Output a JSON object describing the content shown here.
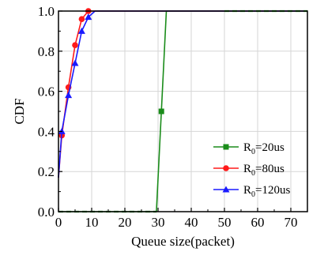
{
  "chart_data": {
    "type": "line",
    "xlabel": "Queue size(packet)",
    "ylabel": "CDF",
    "xlim": [
      0,
      75
    ],
    "ylim": [
      0.0,
      1.0
    ],
    "xticks": [
      0,
      10,
      20,
      30,
      40,
      50,
      60,
      70
    ],
    "yticks": [
      0.0,
      0.2,
      0.4,
      0.6,
      0.8,
      1.0
    ],
    "xtick_labels": [
      "0",
      "10",
      "20",
      "30",
      "40",
      "50",
      "60",
      "70"
    ],
    "ytick_labels": [
      "0.0",
      "0.2",
      "0.4",
      "0.6",
      "0.8",
      "1.0"
    ],
    "grid": true,
    "legend_position": "bottom-right",
    "series": [
      {
        "name_main": "R",
        "name_sub": "0",
        "name_rest": "=20us",
        "color": "#1a8c1a",
        "marker": "square",
        "x": [
          0,
          29.5,
          31,
          32.5,
          50,
          75
        ],
        "y": [
          0.0,
          0.0,
          0.5,
          1.0,
          1.0,
          1.0
        ],
        "markers_x": [
          31
        ],
        "markers_y": [
          0.5
        ]
      },
      {
        "name_main": "R",
        "name_sub": "0",
        "name_rest": "=80us",
        "color": "#ff1a1a",
        "marker": "circle",
        "x": [
          0,
          1,
          3,
          5,
          7,
          9,
          10,
          75
        ],
        "y": [
          0.17,
          0.38,
          0.62,
          0.83,
          0.96,
          1.0,
          1.0,
          1.0
        ],
        "markers_x": [
          1,
          3,
          5,
          7,
          9
        ],
        "markers_y": [
          0.38,
          0.62,
          0.83,
          0.96,
          1.0
        ]
      },
      {
        "name_main": "R",
        "name_sub": "0",
        "name_rest": "=120us",
        "color": "#1a1aff",
        "marker": "triangle",
        "x": [
          0,
          1,
          3,
          5,
          7,
          9,
          11,
          75
        ],
        "y": [
          0.17,
          0.4,
          0.58,
          0.74,
          0.9,
          0.97,
          1.0,
          1.0
        ],
        "markers_x": [
          1,
          3,
          5,
          7,
          9
        ],
        "markers_y": [
          0.4,
          0.58,
          0.74,
          0.9,
          0.97
        ]
      }
    ]
  }
}
